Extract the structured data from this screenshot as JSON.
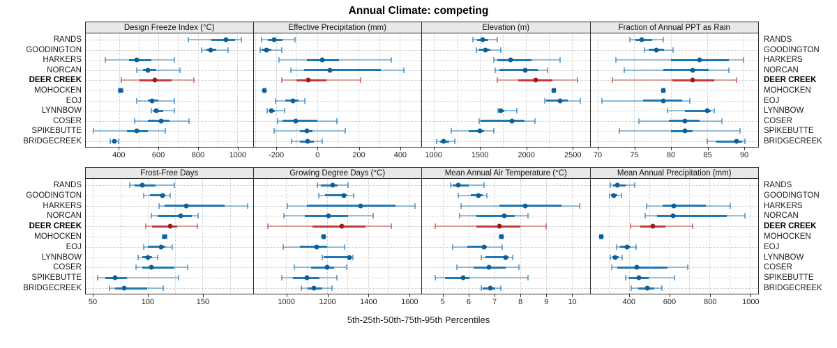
{
  "title": "Annual Climate: competing",
  "caption": "5th-25th-50th-75th-95th Percentiles",
  "colors": {
    "series_main": "#1f77b4",
    "series_dot": "#0e5f98",
    "highlight_main": "#c23a3a",
    "highlight_dot": "#9c1c1c",
    "grid": "#c9c9c9",
    "panel_border": "#2b2b2b",
    "header_bg": "#e8e8e8"
  },
  "chart_data": {
    "type": "dotplot-percentile-trellis",
    "percentile_labels": [
      "5th",
      "25th",
      "50th",
      "75th",
      "95th"
    ],
    "legend_position": "none",
    "grid": "dotted",
    "stations": [
      "RANDS",
      "GOODINGTON",
      "HARKERS",
      "NORCAN",
      "DEER CREEK",
      "MOHOCKEN",
      "EOJ",
      "LYNNBOW",
      "COSER",
      "SPIKEBUTTE",
      "BRIDGECREEK"
    ],
    "highlight_station": "DEER CREEK",
    "panels": [
      {
        "title": "Design Freeze Index (°C)",
        "grid_row": 0,
        "xlim": [
          230,
          1080
        ],
        "ticks": [
          400,
          600,
          800,
          1000
        ],
        "grid_step": 100,
        "values": [
          [
            750,
            870,
            945,
            990,
            1020
          ],
          [
            820,
            845,
            865,
            895,
            955
          ],
          [
            330,
            450,
            490,
            565,
            680
          ],
          [
            490,
            520,
            545,
            590,
            710
          ],
          [
            410,
            505,
            580,
            665,
            780
          ],
          [
            398,
            402,
            407,
            412,
            418
          ],
          [
            490,
            545,
            567,
            600,
            680
          ],
          [
            563,
            575,
            590,
            625,
            680
          ],
          [
            480,
            545,
            615,
            655,
            755
          ],
          [
            270,
            440,
            490,
            545,
            635
          ],
          [
            355,
            365,
            375,
            385,
            398
          ]
        ]
      },
      {
        "title": "Effective Precipitation (mm)",
        "grid_row": 0,
        "xlim": [
          -310,
          505
        ],
        "ticks": [
          -200,
          0,
          200,
          400
        ],
        "grid_step": 100,
        "values": [
          [
            -270,
            -240,
            -210,
            -170,
            -110
          ],
          [
            -278,
            -270,
            -248,
            -225,
            -172
          ],
          [
            -185,
            -50,
            25,
            105,
            360
          ],
          [
            -130,
            -65,
            60,
            310,
            420
          ],
          [
            -173,
            -100,
            -45,
            45,
            210
          ],
          [
            -262,
            -259,
            -256,
            -253,
            -250
          ],
          [
            -203,
            -157,
            -120,
            -90,
            -60
          ],
          [
            -245,
            -235,
            -222,
            -205,
            -160
          ],
          [
            -192,
            -168,
            -105,
            0,
            95
          ],
          [
            -210,
            -85,
            -50,
            -25,
            135
          ],
          [
            -125,
            -85,
            -48,
            -17,
            25
          ]
        ]
      },
      {
        "title": "Elevation (m)",
        "grid_row": 0,
        "xlim": [
          875,
          2690
        ],
        "ticks": [
          1000,
          1500,
          2000,
          2500
        ],
        "grid_step": 250,
        "values": [
          [
            1425,
            1470,
            1530,
            1590,
            1690
          ],
          [
            1460,
            1495,
            1565,
            1615,
            1730
          ],
          [
            1655,
            1690,
            1830,
            2060,
            2370
          ],
          [
            1665,
            1715,
            1990,
            2125,
            2235
          ],
          [
            1690,
            1915,
            2105,
            2285,
            2555
          ],
          [
            2290,
            2298,
            2305,
            2312,
            2320
          ],
          [
            2200,
            2220,
            2370,
            2455,
            2590
          ],
          [
            1695,
            1705,
            1730,
            1765,
            1900
          ],
          [
            1495,
            1510,
            1845,
            1985,
            2095
          ],
          [
            1195,
            1380,
            1500,
            1545,
            1655
          ],
          [
            1030,
            1070,
            1110,
            1170,
            1230
          ]
        ]
      },
      {
        "title": "Fraction of Annual PPT as Rain",
        "grid_row": 0,
        "xlim": [
          69,
          92
        ],
        "ticks": [
          70,
          75,
          80,
          85,
          90
        ],
        "grid_step": 5,
        "values": [
          [
            74.4,
            75.2,
            76.0,
            77.5,
            79.0
          ],
          [
            76.4,
            77.0,
            78.0,
            79.1,
            80.3
          ],
          [
            72.5,
            80.0,
            84.0,
            88.0,
            90.0
          ],
          [
            73.6,
            79.0,
            83.0,
            85.2,
            88.0
          ],
          [
            72.0,
            80.2,
            83.0,
            86.0,
            89.0
          ],
          [
            78.8,
            78.9,
            79.0,
            79.1,
            79.2
          ],
          [
            70.6,
            76.2,
            79.0,
            81.6,
            82.6
          ],
          [
            79.6,
            82.0,
            85.0,
            85.5,
            86.0
          ],
          [
            75.6,
            79.8,
            82.0,
            84.0,
            87.0
          ],
          [
            73.0,
            80.0,
            82.0,
            83.0,
            89.5
          ],
          [
            85.0,
            86.3,
            89.0,
            89.8,
            90.2
          ]
        ]
      },
      {
        "title": "Frost-Free Days",
        "grid_row": 1,
        "xlim": [
          43,
          196
        ],
        "ticks": [
          50,
          100,
          150
        ],
        "grid_step": 25,
        "values": [
          [
            83,
            88,
            95,
            107,
            124
          ],
          [
            96,
            102,
            113,
            116,
            120
          ],
          [
            110,
            115,
            135,
            170,
            191
          ],
          [
            103,
            109,
            130,
            140,
            146
          ],
          [
            98,
            104,
            120,
            127,
            145
          ],
          [
            113,
            114,
            115,
            116,
            117
          ],
          [
            96,
            100,
            112,
            116,
            122
          ],
          [
            91,
            95,
            100,
            104,
            109
          ],
          [
            89,
            95,
            103,
            124,
            136
          ],
          [
            54,
            61,
            70,
            81,
            128
          ],
          [
            65,
            70,
            78,
            99,
            114
          ]
        ]
      },
      {
        "title": "Growing Degree Days (°C)",
        "grid_row": 1,
        "xlim": [
          840,
          1660
        ],
        "ticks": [
          1000,
          1200,
          1400,
          1600
        ],
        "grid_step": 100,
        "values": [
          [
            1153,
            1170,
            1226,
            1250,
            1303
          ],
          [
            1158,
            1190,
            1280,
            1295,
            1330
          ],
          [
            1005,
            1100,
            1365,
            1535,
            1630
          ],
          [
            990,
            1090,
            1207,
            1303,
            1425
          ],
          [
            910,
            1127,
            1270,
            1386,
            1514
          ],
          [
            1175,
            1178,
            1181,
            1185,
            1188
          ],
          [
            985,
            1068,
            1148,
            1200,
            1284
          ],
          [
            1176,
            1184,
            1310,
            1318,
            1326
          ],
          [
            1040,
            1122,
            1200,
            1235,
            1295
          ],
          [
            977,
            1031,
            1102,
            1161,
            1247
          ],
          [
            1074,
            1105,
            1136,
            1176,
            1222
          ]
        ]
      },
      {
        "title": "Mean Annual Air Temperature (°C)",
        "grid_row": 1,
        "xlim": [
          4.2,
          10.7
        ],
        "ticks": [
          5,
          6,
          7,
          8,
          9,
          10
        ],
        "grid_step": 1,
        "values": [
          [
            5.3,
            5.4,
            5.6,
            6.0,
            6.6
          ],
          [
            5.6,
            6.1,
            6.4,
            6.55,
            6.7
          ],
          [
            5.7,
            7.2,
            8.2,
            9.6,
            10.3
          ],
          [
            5.65,
            6.3,
            7.4,
            7.8,
            8.3
          ],
          [
            4.7,
            6.3,
            7.2,
            8.0,
            9.0
          ],
          [
            7.2,
            7.24,
            7.27,
            7.3,
            7.33
          ],
          [
            5.4,
            5.95,
            6.6,
            6.7,
            7.3
          ],
          [
            6.5,
            6.65,
            7.45,
            7.55,
            7.7
          ],
          [
            5.55,
            6.2,
            6.8,
            7.45,
            7.95
          ],
          [
            4.7,
            5.1,
            5.8,
            6.05,
            8.3
          ],
          [
            6.5,
            6.55,
            6.85,
            7.05,
            7.25
          ]
        ]
      },
      {
        "title": "Mean Annual Precipitation (mm)",
        "grid_row": 1,
        "xlim": [
          210,
          1040
        ],
        "ticks": [
          400,
          600,
          800,
          1000
        ],
        "grid_step": 100,
        "values": [
          [
            310,
            322,
            344,
            383,
            430
          ],
          [
            305,
            313,
            326,
            344,
            363
          ],
          [
            488,
            566,
            624,
            780,
            903
          ],
          [
            481,
            539,
            620,
            885,
            976
          ],
          [
            408,
            456,
            520,
            580,
            715
          ],
          [
            255,
            259,
            262,
            266,
            270
          ],
          [
            341,
            357,
            391,
            408,
            436
          ],
          [
            307,
            318,
            333,
            350,
            366
          ],
          [
            316,
            344,
            440,
            593,
            690
          ],
          [
            383,
            402,
            449,
            497,
            626
          ],
          [
            413,
            445,
            490,
            525,
            565
          ]
        ]
      }
    ]
  }
}
